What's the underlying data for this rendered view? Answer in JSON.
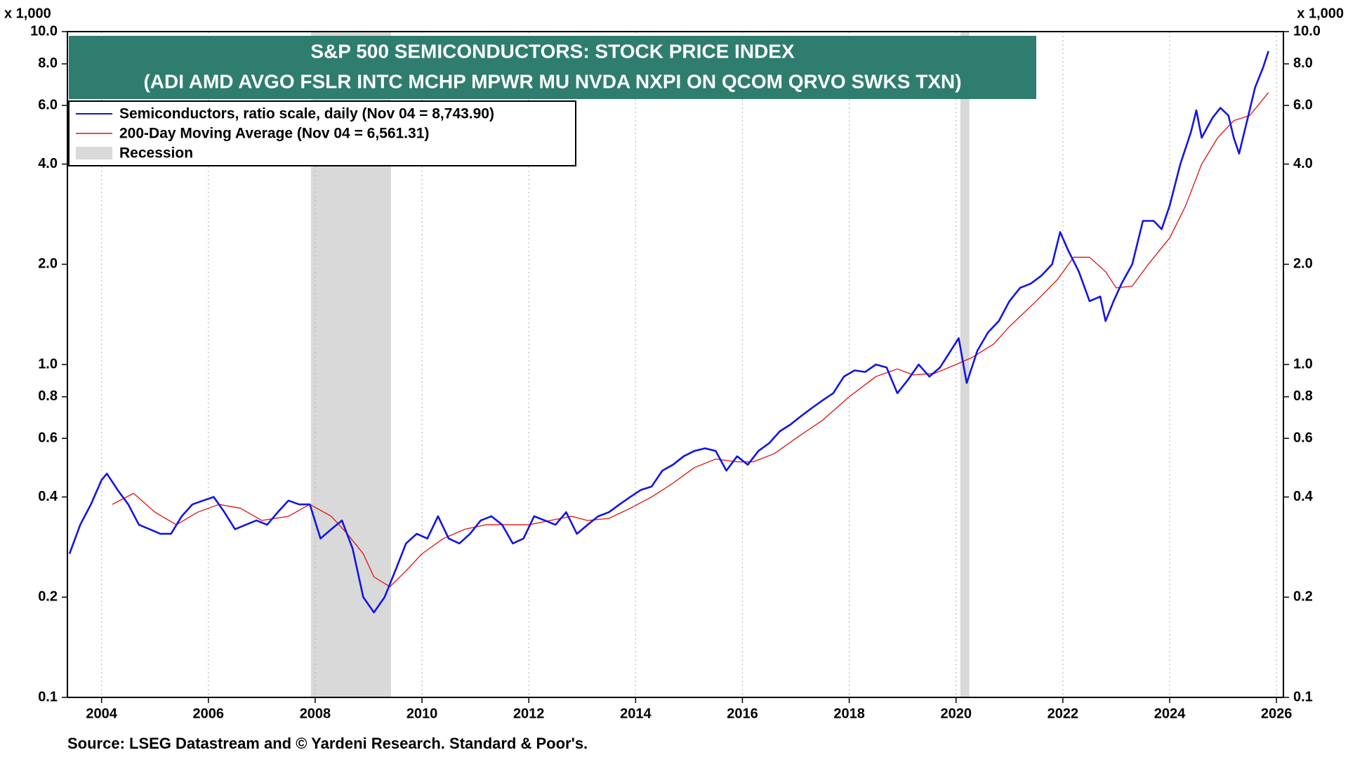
{
  "chart_data": {
    "type": "line",
    "title": "S&P 500 SEMICONDUCTORS: STOCK PRICE INDEX",
    "subtitle": "(ADI AMD AVGO FSLR INTC MCHP MPWR MU NVDA NXPI ON QCOM QRVO SWKS TXN)",
    "y_unit_label": "x 1,000",
    "source": "Source: LSEG Datastream and © Yardeni Research. Standard & Poor's.",
    "log_scale": true,
    "grid": true,
    "legend_position": "upper-left",
    "xlim": [
      2003.36,
      2026.13
    ],
    "xticks": [
      2004,
      2006,
      2008,
      2010,
      2012,
      2014,
      2016,
      2018,
      2020,
      2022,
      2024,
      2026
    ],
    "ylim": [
      0.1,
      10
    ],
    "yticks": [
      0.1,
      0.2,
      0.4,
      0.6,
      0.8,
      {
        "value": 1,
        "label": "1.0"
      },
      {
        "value": 2,
        "label": "2.0"
      },
      {
        "value": 4,
        "label": "4.0"
      },
      {
        "value": 6,
        "label": "6.0"
      },
      {
        "value": 8,
        "label": "8.0"
      },
      {
        "value": 10,
        "label": "10.0"
      }
    ],
    "recession": {
      "name": "Recession",
      "color": "#d9d9d9",
      "periods": [
        [
          2007.92,
          2009.42
        ],
        [
          2020.08,
          2020.25
        ]
      ]
    },
    "series": [
      {
        "name": "Semiconductors, ratio scale, daily (Nov 04 = 8,743.90)",
        "color": "#1414e6",
        "width": 2.6,
        "x": [
          2003.4,
          2003.6,
          2003.8,
          2004.0,
          2004.1,
          2004.3,
          2004.5,
          2004.7,
          2004.9,
          2005.1,
          2005.3,
          2005.5,
          2005.7,
          2005.9,
          2006.1,
          2006.3,
          2006.5,
          2006.7,
          2006.9,
          2007.1,
          2007.3,
          2007.5,
          2007.7,
          2007.9,
          2008.1,
          2008.3,
          2008.5,
          2008.7,
          2008.9,
          2009.1,
          2009.3,
          2009.5,
          2009.7,
          2009.9,
          2010.1,
          2010.3,
          2010.5,
          2010.7,
          2010.9,
          2011.1,
          2011.3,
          2011.5,
          2011.7,
          2011.9,
          2012.1,
          2012.3,
          2012.5,
          2012.7,
          2012.9,
          2013.1,
          2013.3,
          2013.5,
          2013.7,
          2013.9,
          2014.1,
          2014.3,
          2014.5,
          2014.7,
          2014.9,
          2015.1,
          2015.3,
          2015.5,
          2015.7,
          2015.9,
          2016.1,
          2016.3,
          2016.5,
          2016.7,
          2016.9,
          2017.1,
          2017.3,
          2017.5,
          2017.7,
          2017.9,
          2018.1,
          2018.3,
          2018.5,
          2018.7,
          2018.9,
          2019.1,
          2019.3,
          2019.5,
          2019.7,
          2019.9,
          2020.05,
          2020.2,
          2020.4,
          2020.6,
          2020.8,
          2021.0,
          2021.2,
          2021.4,
          2021.6,
          2021.8,
          2021.95,
          2022.1,
          2022.3,
          2022.5,
          2022.7,
          2022.8,
          2022.95,
          2023.1,
          2023.3,
          2023.5,
          2023.7,
          2023.85,
          2024.0,
          2024.2,
          2024.4,
          2024.5,
          2024.6,
          2024.8,
          2024.95,
          2025.1,
          2025.2,
          2025.3,
          2025.45,
          2025.6,
          2025.75,
          2025.85
        ],
        "values": [
          0.27,
          0.33,
          0.38,
          0.45,
          0.47,
          0.42,
          0.38,
          0.33,
          0.32,
          0.31,
          0.31,
          0.35,
          0.38,
          0.39,
          0.4,
          0.36,
          0.32,
          0.33,
          0.34,
          0.33,
          0.36,
          0.39,
          0.38,
          0.38,
          0.3,
          0.32,
          0.34,
          0.28,
          0.2,
          0.18,
          0.2,
          0.24,
          0.29,
          0.31,
          0.3,
          0.35,
          0.3,
          0.29,
          0.31,
          0.34,
          0.35,
          0.33,
          0.29,
          0.3,
          0.35,
          0.34,
          0.33,
          0.36,
          0.31,
          0.33,
          0.35,
          0.36,
          0.38,
          0.4,
          0.42,
          0.43,
          0.48,
          0.5,
          0.53,
          0.55,
          0.56,
          0.55,
          0.48,
          0.53,
          0.5,
          0.55,
          0.58,
          0.63,
          0.66,
          0.7,
          0.74,
          0.78,
          0.82,
          0.92,
          0.96,
          0.95,
          1.0,
          0.98,
          0.82,
          0.9,
          1.0,
          0.92,
          0.98,
          1.1,
          1.2,
          0.88,
          1.1,
          1.25,
          1.35,
          1.55,
          1.7,
          1.75,
          1.85,
          2.0,
          2.5,
          2.2,
          1.9,
          1.55,
          1.6,
          1.35,
          1.55,
          1.75,
          2.0,
          2.7,
          2.7,
          2.55,
          3.0,
          4.0,
          5.0,
          5.8,
          4.8,
          5.5,
          5.9,
          5.6,
          4.8,
          4.3,
          5.4,
          6.8,
          7.8,
          8.74
        ]
      },
      {
        "name": "200-Day Moving Average (Nov 04 = 6,561.31)",
        "color": "#e01010",
        "width": 1.3,
        "x": [
          2004.2,
          2004.6,
          2005.0,
          2005.4,
          2005.8,
          2006.2,
          2006.6,
          2007.0,
          2007.5,
          2007.9,
          2008.3,
          2008.6,
          2008.9,
          2009.1,
          2009.4,
          2009.7,
          2010.0,
          2010.4,
          2010.8,
          2011.2,
          2011.6,
          2012.0,
          2012.4,
          2012.8,
          2013.1,
          2013.5,
          2013.9,
          2014.3,
          2014.7,
          2015.1,
          2015.5,
          2015.9,
          2016.2,
          2016.6,
          2017.0,
          2017.5,
          2018.0,
          2018.5,
          2018.9,
          2019.2,
          2019.6,
          2020.0,
          2020.3,
          2020.7,
          2021.0,
          2021.5,
          2021.9,
          2022.2,
          2022.5,
          2022.8,
          2023.0,
          2023.3,
          2023.6,
          2024.0,
          2024.3,
          2024.6,
          2024.9,
          2025.2,
          2025.5,
          2025.85
        ],
        "values": [
          0.38,
          0.41,
          0.36,
          0.33,
          0.36,
          0.38,
          0.37,
          0.34,
          0.35,
          0.38,
          0.35,
          0.31,
          0.27,
          0.23,
          0.215,
          0.24,
          0.27,
          0.3,
          0.32,
          0.33,
          0.33,
          0.33,
          0.34,
          0.35,
          0.34,
          0.345,
          0.37,
          0.4,
          0.44,
          0.49,
          0.52,
          0.51,
          0.51,
          0.54,
          0.6,
          0.68,
          0.8,
          0.92,
          0.97,
          0.93,
          0.94,
          1.0,
          1.05,
          1.15,
          1.3,
          1.55,
          1.8,
          2.1,
          2.1,
          1.9,
          1.7,
          1.72,
          2.0,
          2.4,
          3.0,
          4.0,
          4.8,
          5.4,
          5.6,
          6.56
        ]
      }
    ]
  }
}
